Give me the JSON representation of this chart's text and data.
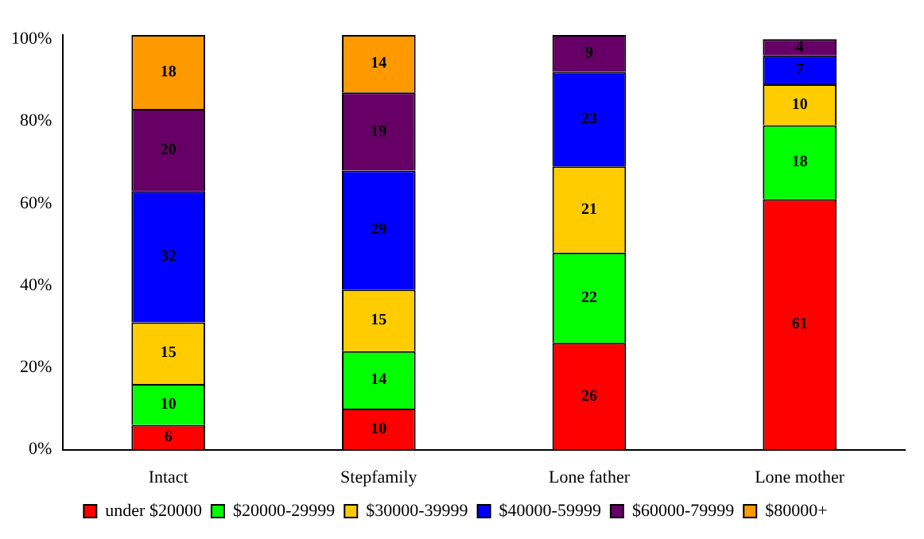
{
  "chart_data": {
    "type": "bar",
    "stacked": true,
    "categories": [
      "Intact",
      "Stepfamily",
      "Lone father",
      "Lone mother"
    ],
    "series": [
      {
        "name": "under $20000",
        "color": "#ff0000",
        "values": [
          6,
          10,
          26,
          61
        ]
      },
      {
        "name": "$20000-29999",
        "color": "#00ff00",
        "values": [
          10,
          14,
          22,
          18
        ]
      },
      {
        "name": "$30000-39999",
        "color": "#ffcc00",
        "values": [
          15,
          15,
          21,
          10
        ]
      },
      {
        "name": "$40000-59999",
        "color": "#0000ff",
        "values": [
          32,
          29,
          23,
          7
        ]
      },
      {
        "name": "$60000-79999",
        "color": "#660066",
        "values": [
          20,
          19,
          9,
          4
        ]
      },
      {
        "name": "$80000+",
        "color": "#ff9900",
        "values": [
          18,
          14,
          null,
          null
        ]
      }
    ],
    "ylim": [
      0,
      101
    ],
    "yticks": [
      {
        "value": 0,
        "label": "0%"
      },
      {
        "value": 20,
        "label": "20%"
      },
      {
        "value": 40,
        "label": "40%"
      },
      {
        "value": 60,
        "label": "60%"
      },
      {
        "value": 80,
        "label": "80%"
      },
      {
        "value": 100,
        "label": "100%"
      }
    ],
    "grid": false,
    "legend": "bottom",
    "data_labels": true
  }
}
